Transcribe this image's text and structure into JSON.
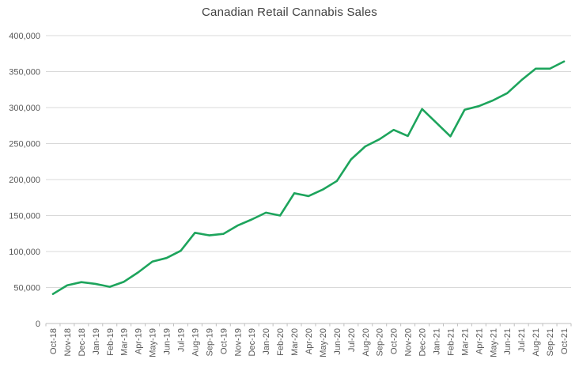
{
  "chart_data": {
    "type": "line",
    "title": "Canadian Retail Cannabis Sales",
    "categories": [
      "Oct-18",
      "Nov-18",
      "Dec-18",
      "Jan-19",
      "Feb-19",
      "Mar-19",
      "Apr-19",
      "May-19",
      "Jun-19",
      "Jul-19",
      "Aug-19",
      "Sep-19",
      "Oct-19",
      "Nov-19",
      "Dec-19",
      "Jan-20",
      "Feb-20",
      "Mar-20",
      "Apr-20",
      "May-20",
      "Jun-20",
      "Jul-20",
      "Aug-20",
      "Sep-20",
      "Oct-20",
      "Nov-20",
      "Dec-20",
      "Jan-21",
      "Feb-21",
      "Mar-21",
      "Apr-21",
      "May-21",
      "Jun-21",
      "Jul-21",
      "Aug-21",
      "Sep-21",
      "Oct-21"
    ],
    "values": [
      41000,
      53000,
      57500,
      55000,
      51000,
      58000,
      71000,
      86000,
      91000,
      101000,
      126000,
      122500,
      124500,
      136000,
      144500,
      154000,
      150000,
      181000,
      177000,
      186000,
      198000,
      228000,
      246000,
      256000,
      269000,
      260500,
      298000,
      279000,
      260000,
      297000,
      302000,
      310000,
      320000,
      338000,
      354000,
      354000,
      364000
    ],
    "xlabel": "",
    "ylabel": "",
    "ylim": [
      0,
      400000
    ],
    "y_tick_step": 50000,
    "grid": true,
    "legend": false,
    "colors": {
      "line": "#1DA45C",
      "gridline": "#D9D9D9",
      "axis_line": "#BFBFBF",
      "tick_label": "#595959",
      "title": "#404040",
      "background": "#FFFFFF"
    }
  }
}
